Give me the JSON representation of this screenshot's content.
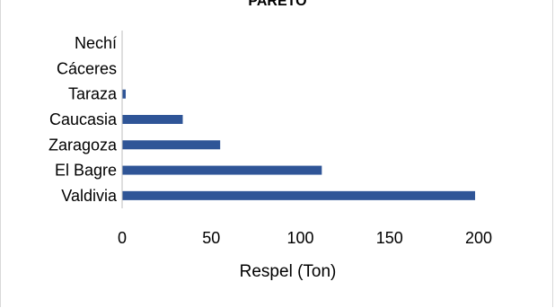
{
  "chart_data": {
    "type": "bar",
    "orientation": "horizontal",
    "title": "PARETO",
    "categories": [
      "Valdivia",
      "El Bagre",
      "Zaragoza",
      "Caucasia",
      "Taraza",
      "Cáceres",
      "Nechí"
    ],
    "series": [
      {
        "values": [
          198,
          112,
          55,
          34,
          2,
          0,
          0
        ]
      }
    ],
    "xlabel": "Respel (Ton)",
    "ylabel": "",
    "xlim": [
      0,
      200
    ],
    "xticks": [
      0,
      50,
      100,
      150,
      200
    ],
    "grid": false,
    "legend": "none",
    "bar_color": "#2F5597"
  }
}
